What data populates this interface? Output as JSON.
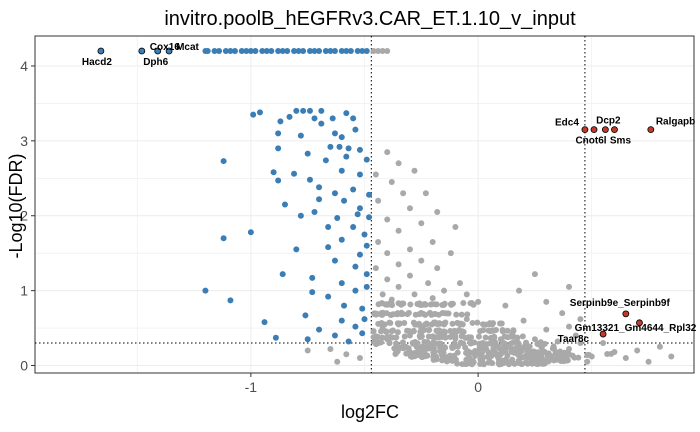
{
  "chart_data": {
    "type": "scatter",
    "title": "invitro.poolB_hEGFRv3.CAR_ET.1.10_v_input",
    "xlabel": "log2FC",
    "ylabel": "-Log10(FDR)",
    "xlim": [
      -1.95,
      0.95
    ],
    "ylim": [
      -0.1,
      4.4
    ],
    "x_ticks": [
      -1,
      0
    ],
    "y_ticks": [
      0,
      1,
      2,
      3,
      4
    ],
    "grid": true,
    "thresholds": {
      "fc_left": -0.47,
      "fc_right": 0.47,
      "fdr": 0.3
    },
    "colors": {
      "down_significant": "#3b7eb5",
      "not_significant": "#a9a9a9",
      "up_significant": "#c0392b",
      "outline": "#000000"
    },
    "labeled_points": [
      {
        "label": "Hacd2",
        "x": -1.66,
        "y": 4.2,
        "group": "down"
      },
      {
        "label": "Cox16",
        "x": -1.48,
        "y": 4.2,
        "group": "down"
      },
      {
        "label": "Dph6",
        "x": -1.41,
        "y": 4.2,
        "group": "down"
      },
      {
        "label": "Mcat",
        "x": -1.36,
        "y": 4.2,
        "group": "down"
      },
      {
        "label": "Edc4",
        "x": 0.47,
        "y": 3.15,
        "group": "up"
      },
      {
        "label": "Cnot6l",
        "x": 0.51,
        "y": 3.15,
        "group": "up"
      },
      {
        "label": "Dcp2",
        "x": 0.56,
        "y": 3.15,
        "group": "up"
      },
      {
        "label": "Sms",
        "x": 0.6,
        "y": 3.15,
        "group": "up"
      },
      {
        "label": "Ralgapb",
        "x": 0.76,
        "y": 3.15,
        "group": "up"
      },
      {
        "label": "Serpinb9e_Serpinb9f",
        "x": 0.65,
        "y": 0.69,
        "group": "up"
      },
      {
        "label": "Gm13321_Gm4644_Rpl32",
        "x": 0.71,
        "y": 0.57,
        "group": "up"
      },
      {
        "label": "Taar8c",
        "x": 0.55,
        "y": 0.42,
        "group": "up"
      }
    ],
    "series": [
      {
        "group": "down",
        "points": [
          [
            -1.2,
            4.2
          ],
          [
            -1.19,
            4.2
          ],
          [
            -1.16,
            4.2
          ],
          [
            -1.14,
            4.2
          ],
          [
            -1.11,
            4.2
          ],
          [
            -1.09,
            4.2
          ],
          [
            -1.07,
            4.2
          ],
          [
            -1.04,
            4.2
          ],
          [
            -1.02,
            4.2
          ],
          [
            -1.0,
            4.2
          ],
          [
            -0.98,
            4.2
          ],
          [
            -0.95,
            4.2
          ],
          [
            -0.93,
            4.2
          ],
          [
            -0.91,
            4.2
          ],
          [
            -0.88,
            4.2
          ],
          [
            -0.86,
            4.2
          ],
          [
            -0.84,
            4.2
          ],
          [
            -0.81,
            4.2
          ],
          [
            -0.79,
            4.2
          ],
          [
            -0.77,
            4.2
          ],
          [
            -0.74,
            4.2
          ],
          [
            -0.72,
            4.2
          ],
          [
            -0.7,
            4.2
          ],
          [
            -0.67,
            4.2
          ],
          [
            -0.65,
            4.2
          ],
          [
            -0.63,
            4.2
          ],
          [
            -0.6,
            4.2
          ],
          [
            -0.58,
            4.2
          ],
          [
            -0.56,
            4.2
          ],
          [
            -0.53,
            4.2
          ],
          [
            -0.51,
            4.2
          ],
          [
            -0.49,
            4.2
          ],
          [
            -0.99,
            3.35
          ],
          [
            -0.96,
            3.38
          ],
          [
            -0.8,
            3.4
          ],
          [
            -0.77,
            3.4
          ],
          [
            -0.74,
            3.4
          ],
          [
            -0.69,
            3.4
          ],
          [
            -0.83,
            3.32
          ],
          [
            -0.72,
            3.3
          ],
          [
            -0.58,
            3.37
          ],
          [
            -0.64,
            3.3
          ],
          [
            -0.55,
            3.3
          ],
          [
            -0.87,
            3.26
          ],
          [
            -0.69,
            3.23
          ],
          [
            -0.88,
            3.1
          ],
          [
            -0.78,
            3.07
          ],
          [
            -0.63,
            3.1
          ],
          [
            -0.54,
            3.15
          ],
          [
            -0.6,
            3.05
          ],
          [
            -0.57,
            2.9
          ],
          [
            -0.61,
            2.92
          ],
          [
            -0.65,
            2.92
          ],
          [
            -1.12,
            2.73
          ],
          [
            -0.88,
            2.9
          ],
          [
            -0.75,
            2.83
          ],
          [
            -0.52,
            2.88
          ],
          [
            -0.67,
            2.74
          ],
          [
            -0.58,
            2.79
          ],
          [
            -0.49,
            2.75
          ],
          [
            -0.81,
            2.56
          ],
          [
            -0.6,
            2.6
          ],
          [
            -0.74,
            2.48
          ],
          [
            -0.52,
            2.55
          ],
          [
            -0.9,
            2.58
          ],
          [
            -0.88,
            2.47
          ],
          [
            -0.7,
            2.38
          ],
          [
            -0.55,
            2.35
          ],
          [
            -0.63,
            2.3
          ],
          [
            -0.85,
            2.15
          ],
          [
            -0.7,
            2.22
          ],
          [
            -0.48,
            2.28
          ],
          [
            -0.59,
            2.2
          ],
          [
            -0.52,
            2.1
          ],
          [
            -0.72,
            2.05
          ],
          [
            -0.78,
            2.0
          ],
          [
            -0.53,
            2.02
          ],
          [
            -0.48,
            1.98
          ],
          [
            -0.62,
            1.97
          ],
          [
            -0.66,
            1.85
          ],
          [
            -0.5,
            1.75
          ],
          [
            -0.55,
            1.85
          ],
          [
            -1.0,
            1.78
          ],
          [
            -1.12,
            1.7
          ],
          [
            -0.6,
            1.68
          ],
          [
            -0.49,
            1.6
          ],
          [
            -0.8,
            1.55
          ],
          [
            -0.66,
            1.58
          ],
          [
            -0.52,
            1.48
          ],
          [
            -0.63,
            1.4
          ],
          [
            -0.54,
            1.32
          ],
          [
            -0.86,
            1.22
          ],
          [
            -0.73,
            1.17
          ],
          [
            -0.49,
            1.22
          ],
          [
            -0.6,
            1.1
          ],
          [
            -0.54,
            1.0
          ],
          [
            -0.73,
            0.98
          ],
          [
            -0.49,
            1.05
          ],
          [
            -1.09,
            0.87
          ],
          [
            -1.2,
            1.0
          ],
          [
            -0.66,
            0.92
          ],
          [
            -0.59,
            0.8
          ],
          [
            -0.51,
            0.76
          ],
          [
            -0.76,
            0.67
          ],
          [
            -0.94,
            0.58
          ],
          [
            -0.6,
            0.6
          ],
          [
            -0.5,
            0.62
          ],
          [
            -0.7,
            0.48
          ],
          [
            -0.54,
            0.52
          ],
          [
            -0.63,
            0.4
          ],
          [
            -0.51,
            0.43
          ],
          [
            -0.89,
            0.37
          ],
          [
            -0.75,
            0.35
          ],
          [
            -0.57,
            0.32
          ]
        ]
      },
      {
        "group": "ns",
        "points": [
          [
            -0.46,
            4.2
          ],
          [
            -0.44,
            4.2
          ],
          [
            -0.42,
            4.2
          ],
          [
            -0.4,
            4.2
          ],
          [
            -0.4,
            2.85
          ],
          [
            -0.35,
            2.7
          ],
          [
            -0.45,
            2.55
          ],
          [
            -0.28,
            2.6
          ],
          [
            -0.38,
            2.45
          ],
          [
            -0.23,
            2.3
          ],
          [
            -0.33,
            2.3
          ],
          [
            -0.44,
            2.2
          ],
          [
            -0.3,
            2.1
          ],
          [
            -0.18,
            2.05
          ],
          [
            -0.4,
            1.95
          ],
          [
            -0.25,
            1.9
          ],
          [
            -0.1,
            1.85
          ],
          [
            -0.35,
            1.8
          ],
          [
            -0.44,
            1.65
          ],
          [
            -0.2,
            1.65
          ],
          [
            -0.3,
            1.55
          ],
          [
            -0.4,
            1.5
          ],
          [
            -0.12,
            1.5
          ],
          [
            -0.25,
            1.4
          ],
          [
            -0.35,
            1.35
          ],
          [
            -0.45,
            1.3
          ],
          [
            -0.18,
            1.3
          ],
          [
            -0.3,
            1.2
          ],
          [
            -0.4,
            1.15
          ],
          [
            -0.22,
            1.1
          ],
          [
            -0.08,
            1.1
          ],
          [
            -0.35,
            1.05
          ],
          [
            -0.15,
            1.0
          ],
          [
            -0.42,
            0.95
          ],
          [
            -0.28,
            0.95
          ],
          [
            -0.05,
            0.95
          ],
          [
            -0.2,
            0.9
          ],
          [
            -0.38,
            0.88
          ],
          [
            0.0,
            0.85
          ],
          [
            -0.12,
            0.82
          ],
          [
            0.25,
            1.22
          ],
          [
            0.18,
            1.0
          ],
          [
            0.4,
            1.05
          ],
          [
            0.3,
            0.85
          ],
          [
            0.12,
            0.8
          ],
          [
            0.37,
            0.7
          ],
          [
            0.45,
            0.62
          ],
          [
            0.2,
            0.6
          ],
          [
            0.4,
            0.52
          ],
          [
            0.05,
            0.55
          ],
          [
            0.3,
            0.48
          ],
          [
            0.43,
            0.4
          ],
          [
            0.15,
            0.42
          ],
          [
            0.25,
            0.35
          ],
          [
            0.35,
            0.32
          ],
          [
            0.1,
            0.35
          ],
          [
            0.45,
            0.3
          ],
          [
            0.02,
            0.3
          ],
          [
            -0.05,
            0.62
          ],
          [
            -0.15,
            0.55
          ],
          [
            -0.25,
            0.5
          ],
          [
            -0.35,
            0.55
          ],
          [
            -0.42,
            0.5
          ],
          [
            -0.3,
            0.4
          ],
          [
            -0.2,
            0.38
          ],
          [
            -0.1,
            0.36
          ],
          [
            -0.4,
            0.35
          ],
          [
            -0.65,
            0.22
          ],
          [
            -0.75,
            0.2
          ],
          [
            -0.58,
            0.15
          ],
          [
            -0.52,
            0.1
          ],
          [
            -0.62,
            0.05
          ],
          [
            0.55,
            0.3
          ],
          [
            0.7,
            0.2
          ],
          [
            0.8,
            0.25
          ],
          [
            0.65,
            0.1
          ],
          [
            0.75,
            0.05
          ],
          [
            0.6,
            0.18
          ],
          [
            0.5,
            0.12
          ],
          [
            0.85,
            0.12
          ],
          [
            0.4,
            0.22
          ],
          [
            0.48,
            0.05
          ]
        ],
        "bands": [
          {
            "x_range": [
              -0.46,
              0.0
            ],
            "y": 0.82,
            "count": 40
          },
          {
            "x_range": [
              -0.46,
              0.0
            ],
            "y": 0.69,
            "count": 40
          },
          {
            "x_range": [
              -0.46,
              0.12
            ],
            "y": 0.56,
            "count": 44
          },
          {
            "x_range": [
              -0.46,
              0.18
            ],
            "y": 0.46,
            "count": 46
          },
          {
            "x_range": [
              -0.46,
              0.22
            ],
            "y": 0.38,
            "count": 46
          },
          {
            "x_range": [
              -0.46,
              0.3
            ],
            "y": 0.3,
            "count": 52
          },
          {
            "x_range": [
              -0.42,
              0.35
            ],
            "y": 0.24,
            "count": 52
          },
          {
            "x_range": [
              -0.38,
              0.4
            ],
            "y": 0.18,
            "count": 54
          },
          {
            "x_range": [
              -0.3,
              0.45
            ],
            "y": 0.12,
            "count": 52
          },
          {
            "x_range": [
              -0.2,
              0.4
            ],
            "y": 0.07,
            "count": 44
          },
          {
            "x_range": [
              -0.1,
              0.3
            ],
            "y": 0.03,
            "count": 36
          },
          {
            "x_range": [
              -0.4,
              0.6
            ],
            "y": 0.15,
            "count": 30
          }
        ]
      }
    ]
  }
}
